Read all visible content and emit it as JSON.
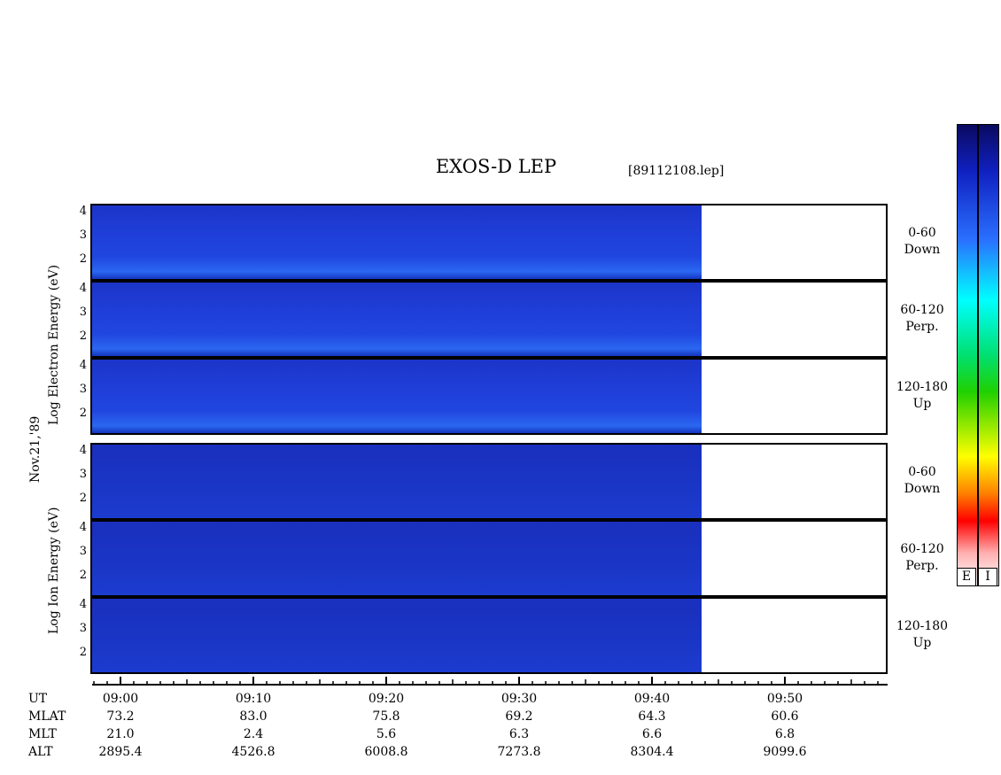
{
  "title": "EXOS-D LEP",
  "file": "[89112108.lep]",
  "date_label": "Nov.21,'89",
  "electron_ylabel": [
    "Log",
    "Electron",
    "Energy",
    "(eV)"
  ],
  "ion_ylabel": [
    "Log",
    "Ion",
    "Energy",
    "(eV)"
  ],
  "panels": [
    {
      "pitch": "0-60",
      "dir": "Down",
      "species": "electron"
    },
    {
      "pitch": "60-120",
      "dir": "Perp.",
      "species": "electron"
    },
    {
      "pitch": "120-180",
      "dir": "Up",
      "species": "electron"
    },
    {
      "pitch": "0-60",
      "dir": "Down",
      "species": "ion"
    },
    {
      "pitch": "60-120",
      "dir": "Perp.",
      "species": "ion"
    },
    {
      "pitch": "120-180",
      "dir": "Up",
      "species": "ion"
    }
  ],
  "colorbar": {
    "labels": [
      "E",
      "I"
    ],
    "colors": [
      "#0a0a60",
      "#1020c0",
      "#2a70ff",
      "#00ffff",
      "#00e070",
      "#20d000",
      "#ffff00",
      "#ff8000",
      "#ff0000",
      "#ffb0b0",
      "#ffffff"
    ]
  },
  "chart_data": {
    "type": "heatmap",
    "title": "EXOS-D LEP",
    "ylabel": "Log Energy (eV)",
    "y_ticks": [
      "4",
      "3",
      "2"
    ],
    "ylim": [
      1,
      4.2
    ],
    "x_label_rows": [
      "UT",
      "MLAT",
      "MLT",
      "ALT"
    ],
    "x": [
      "09:00",
      "09:10",
      "09:20",
      "09:30",
      "09:40",
      "09:50"
    ],
    "MLAT": [
      "73.2",
      "83.0",
      "75.8",
      "69.2",
      "64.3",
      "60.6"
    ],
    "MLT": [
      "21.0",
      "2.4",
      "5.6",
      "6.3",
      "6.6",
      "6.8"
    ],
    "ALT": [
      "2895.4",
      "4526.8",
      "6008.8",
      "7273.8",
      "8304.4",
      "9099.6"
    ],
    "data_end": "09:44"
  }
}
